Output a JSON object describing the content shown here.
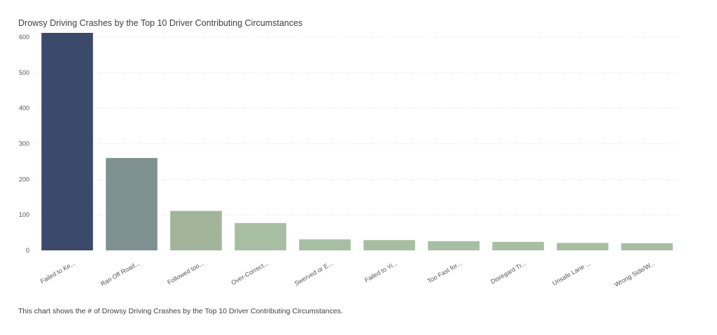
{
  "chart_data": {
    "type": "bar",
    "title": "Drowsy Driving Crashes by the Top 10 Driver Contributing Circumstances",
    "caption": "This chart shows the # of Drowsy Driving Crashes by the Top 10 Driver Contributing Circumstances.",
    "categories": [
      "Failed to Ke...",
      "Ran Off Road...",
      "Followed too...",
      "Over-Correct...",
      "Swerved or E...",
      "Failed to Yi...",
      "Too Fast for...",
      "Disregard Tr...",
      "Unsafe Lane ...",
      "Wrong Side/W..."
    ],
    "values": [
      612,
      260,
      111,
      77,
      31,
      29,
      26,
      24,
      21,
      20
    ],
    "colors": [
      "#3b4a6b",
      "#7f9190",
      "#a2b59b",
      "#a7bea3",
      "#a7bea3",
      "#a7bea3",
      "#a7bea3",
      "#a7bea3",
      "#a7bea3",
      "#a7bea3"
    ],
    "yticks": [
      0,
      100,
      200,
      300,
      400,
      500,
      600
    ],
    "ylim": [
      0,
      612
    ],
    "grid": true
  }
}
